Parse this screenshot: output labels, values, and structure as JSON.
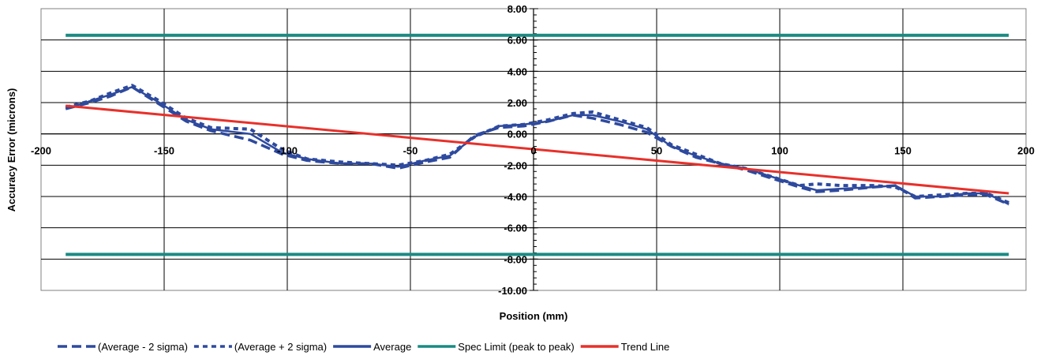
{
  "chart_data": {
    "type": "line",
    "title": "",
    "xlabel": "Position (mm)",
    "ylabel": "Accuracy Error (microns)",
    "xlim": [
      -200,
      200
    ],
    "ylim": [
      -10,
      8
    ],
    "x_ticks": [
      -200,
      -150,
      -100,
      -50,
      0,
      50,
      100,
      150,
      200
    ],
    "x_tick_labels": [
      "-200",
      "-150",
      "-100",
      "-50",
      "0",
      "50",
      "100",
      "150",
      "200"
    ],
    "y_ticks": [
      8,
      6,
      4,
      2,
      0,
      -2,
      -4,
      -6,
      -8,
      -10
    ],
    "y_tick_labels": [
      "8.00",
      "6.00",
      "4.00",
      "2.00",
      "0.00",
      "-2.00",
      "-4.00",
      "-6.00",
      "-8.00",
      "-10.00"
    ],
    "grid": true,
    "legend_position": "bottom",
    "x": [
      -190,
      -180,
      -172,
      -163,
      -153,
      -141,
      -131,
      -115,
      -102,
      -92,
      -78,
      -66,
      -55,
      -44,
      -34,
      -24,
      -14,
      -4,
      6,
      16,
      24,
      35,
      46,
      56,
      66,
      76,
      86,
      98,
      108,
      115,
      125,
      138,
      147,
      155,
      166,
      176,
      184,
      193
    ],
    "series": [
      {
        "name": "(Average - 2 sigma)",
        "color": "#2E4A9E",
        "style": "dashed",
        "values": [
          1.6,
          2.0,
          2.4,
          3.0,
          2.0,
          0.8,
          0.2,
          -0.4,
          -1.3,
          -1.7,
          -1.9,
          -1.9,
          -2.2,
          -1.8,
          -1.5,
          -0.1,
          0.4,
          0.5,
          0.8,
          1.2,
          1.0,
          0.6,
          0.1,
          -0.8,
          -1.5,
          -1.9,
          -2.3,
          -2.9,
          -3.4,
          -3.7,
          -3.6,
          -3.4,
          -3.3,
          -4.1,
          -4.0,
          -3.9,
          -3.9,
          -4.5
        ]
      },
      {
        "name": "(Average + 2 sigma)",
        "color": "#2E4A9E",
        "style": "dotted",
        "values": [
          1.7,
          2.1,
          2.6,
          3.1,
          2.2,
          1.0,
          0.4,
          0.3,
          -1.0,
          -1.6,
          -1.8,
          -1.9,
          -2.0,
          -1.7,
          -1.3,
          -0.2,
          0.5,
          0.6,
          0.9,
          1.3,
          1.4,
          0.9,
          0.4,
          -0.7,
          -1.3,
          -1.9,
          -2.2,
          -2.8,
          -3.3,
          -3.2,
          -3.3,
          -3.3,
          -3.4,
          -4.0,
          -3.9,
          -3.8,
          -3.8,
          -4.4
        ]
      },
      {
        "name": "Average",
        "color": "#2E4A9E",
        "style": "solid",
        "values": [
          1.6,
          2.1,
          2.5,
          3.0,
          2.1,
          0.9,
          0.3,
          0.0,
          -1.2,
          -1.6,
          -1.9,
          -1.9,
          -2.1,
          -1.7,
          -1.4,
          -0.2,
          0.5,
          0.6,
          0.8,
          1.2,
          1.2,
          0.8,
          0.3,
          -0.8,
          -1.4,
          -1.9,
          -2.2,
          -2.8,
          -3.3,
          -3.6,
          -3.5,
          -3.4,
          -3.3,
          -4.0,
          -4.0,
          -3.8,
          -3.8,
          -4.5
        ]
      },
      {
        "name": "Spec Limit (peak to peak)",
        "color": "#1A8A83",
        "style": "solid",
        "lines": [
          {
            "x": [
              -190,
              193
            ],
            "y": [
              6.3,
              6.3
            ]
          },
          {
            "x": [
              -190,
              193
            ],
            "y": [
              -7.7,
              -7.7
            ]
          }
        ]
      },
      {
        "name": "Trend Line",
        "color": "#E8302A",
        "style": "solid",
        "x": [
          -190,
          193
        ],
        "values": [
          1.8,
          -3.8
        ]
      }
    ]
  }
}
